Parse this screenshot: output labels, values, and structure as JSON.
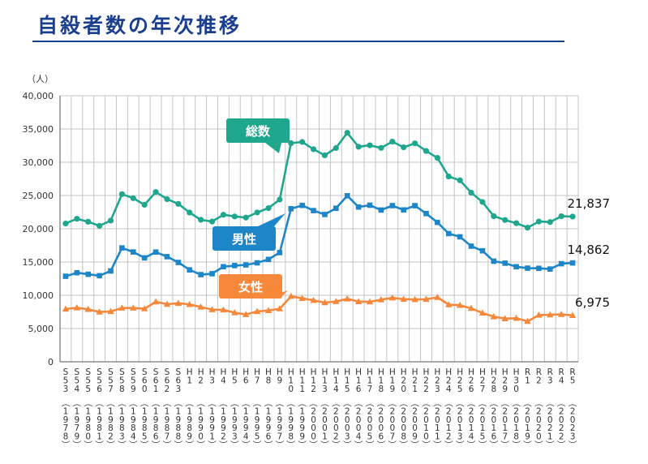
{
  "title": "自殺者数の年次推移",
  "colors": {
    "total": "#1fa78d",
    "male": "#1c86c8",
    "female": "#f5883b",
    "title": "#1b3f8f"
  },
  "chart_data": {
    "type": "line",
    "title": "自殺者数の年次推移",
    "ylabel": "（人）",
    "xlabel": "",
    "ylim": [
      0,
      40000
    ],
    "y_ticks": [
      "0",
      "5,000",
      "10,000",
      "15,000",
      "20,000",
      "25,000",
      "30,000",
      "35,000",
      "40,000"
    ],
    "grid": true,
    "categories": [
      {
        "era": "S53",
        "year": "1978"
      },
      {
        "era": "S54",
        "year": "1979"
      },
      {
        "era": "S55",
        "year": "1980"
      },
      {
        "era": "S56",
        "year": "1981"
      },
      {
        "era": "S57",
        "year": "1982"
      },
      {
        "era": "S58",
        "year": "1983"
      },
      {
        "era": "S59",
        "year": "1984"
      },
      {
        "era": "S60",
        "year": "1985"
      },
      {
        "era": "S61",
        "year": "1986"
      },
      {
        "era": "S62",
        "year": "1987"
      },
      {
        "era": "S63",
        "year": "1988"
      },
      {
        "era": "H1",
        "year": "1989"
      },
      {
        "era": "H2",
        "year": "1990"
      },
      {
        "era": "H3",
        "year": "1991"
      },
      {
        "era": "H4",
        "year": "1992"
      },
      {
        "era": "H5",
        "year": "1993"
      },
      {
        "era": "H6",
        "year": "1994"
      },
      {
        "era": "H7",
        "year": "1995"
      },
      {
        "era": "H8",
        "year": "1996"
      },
      {
        "era": "H9",
        "year": "1997"
      },
      {
        "era": "H10",
        "year": "1998"
      },
      {
        "era": "H11",
        "year": "1999"
      },
      {
        "era": "H12",
        "year": "2000"
      },
      {
        "era": "H13",
        "year": "2001"
      },
      {
        "era": "H14",
        "year": "2002"
      },
      {
        "era": "H15",
        "year": "2003"
      },
      {
        "era": "H16",
        "year": "2004"
      },
      {
        "era": "H17",
        "year": "2005"
      },
      {
        "era": "H18",
        "year": "2006"
      },
      {
        "era": "H19",
        "year": "2007"
      },
      {
        "era": "H20",
        "year": "2008"
      },
      {
        "era": "H21",
        "year": "2009"
      },
      {
        "era": "H22",
        "year": "2010"
      },
      {
        "era": "H23",
        "year": "2011"
      },
      {
        "era": "H24",
        "year": "2012"
      },
      {
        "era": "H25",
        "year": "2013"
      },
      {
        "era": "H26",
        "year": "2014"
      },
      {
        "era": "H27",
        "year": "2015"
      },
      {
        "era": "H28",
        "year": "2016"
      },
      {
        "era": "H29",
        "year": "2017"
      },
      {
        "era": "H30",
        "year": "2018"
      },
      {
        "era": "R1",
        "year": "2019"
      },
      {
        "era": "R2",
        "year": "2020"
      },
      {
        "era": "R3",
        "year": "2021"
      },
      {
        "era": "R4",
        "year": "2022"
      },
      {
        "era": "R5",
        "year": "2023"
      }
    ],
    "series": [
      {
        "key": "total",
        "name": "総数",
        "marker": "circle",
        "end_label": "21,837",
        "values": [
          20788,
          21503,
          21048,
          20434,
          21228,
          25202,
          24596,
          23599,
          25524,
          24460,
          23742,
          22436,
          21346,
          21084,
          22104,
          21851,
          21679,
          22445,
          23104,
          24391,
          32863,
          33048,
          31957,
          31042,
          32143,
          34427,
          32325,
          32552,
          32155,
          33093,
          32249,
          32845,
          31690,
          30651,
          27858,
          27283,
          25427,
          24025,
          21897,
          21321,
          20840,
          20169,
          21081,
          21007,
          21881,
          21837
        ]
      },
      {
        "key": "male",
        "name": "男性",
        "marker": "square",
        "end_label": "14,862",
        "values": [
          12859,
          13386,
          13155,
          12942,
          13654,
          17116,
          16508,
          15624,
          16499,
          15802,
          14934,
          13818,
          13102,
          13242,
          14296,
          14468,
          14560,
          14874,
          15393,
          16416,
          23013,
          23512,
          22727,
          22144,
          23080,
          24963,
          23272,
          23540,
          22813,
          23478,
          22831,
          23472,
          22283,
          20955,
          19273,
          18787,
          17386,
          16681,
          15121,
          14826,
          14290,
          14078,
          14055,
          13939,
          14746,
          14862
        ]
      },
      {
        "key": "female",
        "name": "女性",
        "marker": "triangle",
        "end_label": "6,975",
        "values": [
          7929,
          8117,
          7893,
          7492,
          7574,
          8086,
          8088,
          7975,
          9025,
          8658,
          8808,
          8618,
          8244,
          7842,
          7808,
          7383,
          7119,
          7571,
          7711,
          7975,
          9850,
          9536,
          9230,
          8898,
          9063,
          9464,
          9053,
          9012,
          9342,
          9615,
          9418,
          9373,
          9407,
          9696,
          8585,
          8496,
          8041,
          7344,
          6776,
          6495,
          6550,
          6091,
          7026,
          7068,
          7135,
          6975
        ]
      }
    ]
  }
}
